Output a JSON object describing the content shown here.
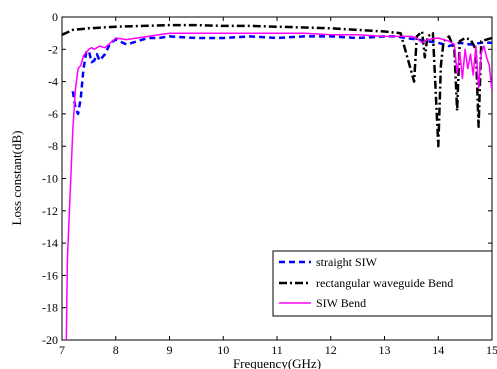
{
  "chart_data": {
    "type": "line",
    "title": "",
    "xlabel": "Frequency(GHz)",
    "ylabel": "Loss constant(dB)",
    "xlim": [
      7,
      15
    ],
    "ylim": [
      -20,
      0
    ],
    "grid": false,
    "legend_position": "bottom-right",
    "x_ticks": [
      7,
      8,
      9,
      10,
      11,
      12,
      13,
      14,
      15
    ],
    "y_ticks": [
      0,
      -2,
      -4,
      -6,
      -8,
      -10,
      -12,
      -14,
      -16,
      -18,
      -20
    ],
    "series": [
      {
        "name": "straight SIW",
        "color": "#0000ff",
        "style": "dashed",
        "x": [
          7.2,
          7.25,
          7.3,
          7.35,
          7.4,
          7.45,
          7.5,
          7.55,
          7.6,
          7.65,
          7.7,
          7.8,
          7.9,
          8.0,
          8.2,
          8.4,
          8.6,
          8.8,
          9.0,
          9.5,
          10.0,
          10.5,
          11.0,
          11.5,
          12.0,
          12.5,
          13.0,
          13.2,
          13.4,
          13.6,
          13.8,
          14.0,
          14.2,
          14.4,
          14.6,
          14.8,
          15.0
        ],
        "y": [
          -4.6,
          -5.6,
          -6.0,
          -5.0,
          -3.2,
          -2.2,
          -2.1,
          -2.8,
          -2.7,
          -2.3,
          -2.7,
          -2.3,
          -1.6,
          -1.4,
          -1.7,
          -1.5,
          -1.3,
          -1.3,
          -1.2,
          -1.3,
          -1.3,
          -1.2,
          -1.3,
          -1.2,
          -1.2,
          -1.3,
          -1.2,
          -1.2,
          -1.3,
          -1.4,
          -1.5,
          -1.6,
          -1.8,
          -1.6,
          -1.7,
          -1.6,
          -1.6
        ]
      },
      {
        "name": "rectangular waveguide Bend",
        "color": "#000000",
        "style": "dashdot",
        "x": [
          7.0,
          7.2,
          7.5,
          8.0,
          8.5,
          9.0,
          9.5,
          10.0,
          10.5,
          11.0,
          11.5,
          12.0,
          12.5,
          13.0,
          13.3,
          13.45,
          13.55,
          13.6,
          13.7,
          13.75,
          13.8,
          13.9,
          13.95,
          14.0,
          14.05,
          14.1,
          14.2,
          14.3,
          14.35,
          14.4,
          14.5,
          14.6,
          14.7,
          14.75,
          14.8,
          14.9,
          15.0
        ],
        "y": [
          -1.1,
          -0.8,
          -0.7,
          -0.6,
          -0.55,
          -0.5,
          -0.5,
          -0.55,
          -0.55,
          -0.6,
          -0.65,
          -0.7,
          -0.8,
          -0.9,
          -1.0,
          -2.8,
          -4.0,
          -1.2,
          -0.9,
          -2.5,
          -1.2,
          -1.0,
          -4.5,
          -8.0,
          -3.0,
          -1.5,
          -1.2,
          -2.0,
          -5.8,
          -1.5,
          -1.3,
          -1.4,
          -2.0,
          -6.8,
          -1.5,
          -1.4,
          -1.3
        ]
      },
      {
        "name": "SIW Bend",
        "color": "#ff00ff",
        "style": "solid",
        "x": [
          7.08,
          7.1,
          7.15,
          7.2,
          7.25,
          7.3,
          7.35,
          7.4,
          7.45,
          7.5,
          7.55,
          7.6,
          7.7,
          7.8,
          7.9,
          8.0,
          8.2,
          8.4,
          8.6,
          8.8,
          9.0,
          9.5,
          10.0,
          10.5,
          11.0,
          11.5,
          12.0,
          12.5,
          13.0,
          13.3,
          13.5,
          13.6,
          13.7,
          13.8,
          14.0,
          14.2,
          14.3,
          14.35,
          14.4,
          14.45,
          14.5,
          14.55,
          14.6,
          14.65,
          14.7,
          14.75,
          14.8,
          14.85,
          14.9,
          14.95,
          15.0
        ],
        "y": [
          -20.0,
          -15.0,
          -11.0,
          -7.0,
          -4.5,
          -3.2,
          -3.0,
          -2.4,
          -2.2,
          -2.0,
          -1.9,
          -2.0,
          -1.8,
          -1.9,
          -1.6,
          -1.3,
          -1.4,
          -1.3,
          -1.2,
          -1.1,
          -1.0,
          -1.0,
          -1.0,
          -1.0,
          -1.0,
          -1.0,
          -1.1,
          -1.1,
          -1.2,
          -1.2,
          -1.2,
          -1.3,
          -1.6,
          -1.4,
          -1.3,
          -1.5,
          -1.7,
          -3.5,
          -2.2,
          -3.8,
          -2.0,
          -3.2,
          -2.3,
          -3.6,
          -1.8,
          -4.4,
          -2.2,
          -1.8,
          -2.5,
          -3.0,
          -4.6
        ]
      }
    ]
  }
}
